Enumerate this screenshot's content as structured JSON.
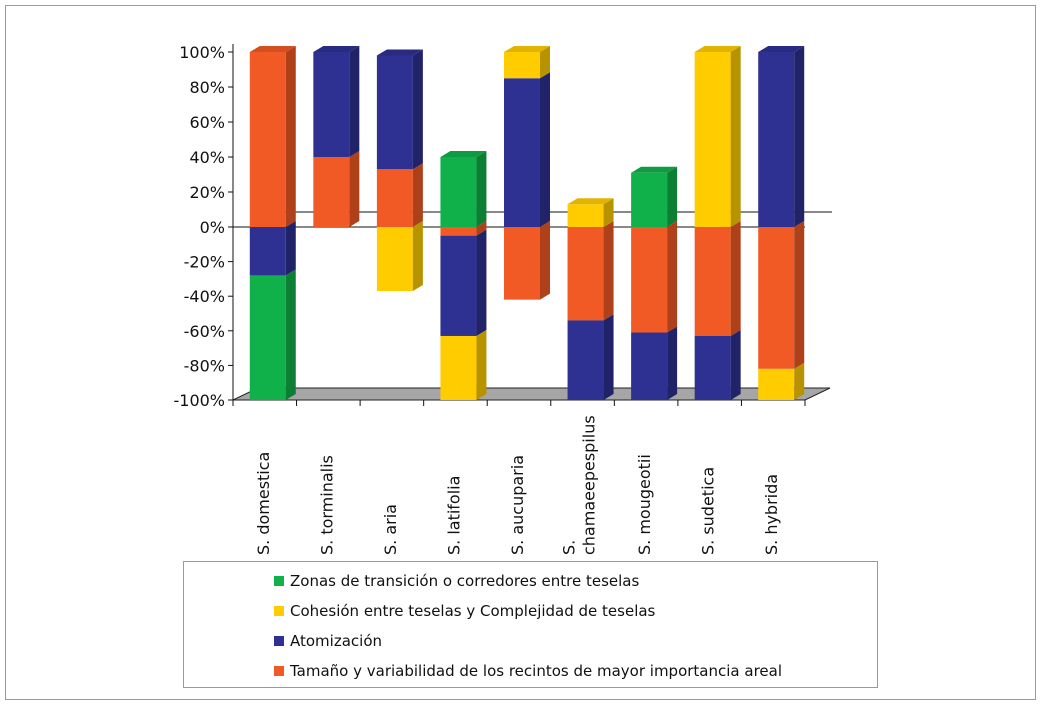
{
  "chart_data": {
    "type": "bar",
    "stacked": true,
    "three_d": true,
    "categories": [
      "S. domestica",
      "S. torminalis",
      "S. aria",
      "S. latifolia",
      "S. aucuparia",
      "S.\nchamaeepespilus",
      "S. mougeotii",
      "S. sudetica",
      "S. hybrida"
    ],
    "ylim": [
      -100,
      100
    ],
    "yticks": [
      100,
      80,
      60,
      40,
      20,
      0,
      -20,
      -40,
      -60,
      -80,
      -100
    ],
    "ytick_labels": [
      "100%",
      "80%",
      "60%",
      "40%",
      "20%",
      "0%",
      "-20%",
      "-40%",
      "-60%",
      "-80%",
      "-100%"
    ],
    "series": [
      {
        "name": "Zonas de transición o corredores entre teselas",
        "color": "#10b04a",
        "values": [
          -72,
          0,
          0,
          40,
          0,
          0,
          31,
          0,
          0
        ]
      },
      {
        "name": "Cohesión entre teselas y Complejidad de teselas",
        "color": "#ffcc00",
        "values": [
          0,
          0,
          -37,
          -37,
          15,
          13,
          0,
          100,
          -18
        ]
      },
      {
        "name": "Atomización",
        "color": "#2e3192",
        "values": [
          -28,
          60,
          65,
          -58,
          85,
          -46,
          -39,
          -37,
          100
        ]
      },
      {
        "name": "Tamaño y variabilidad de los recintos de mayor importancia areal",
        "color": "#f15a24",
        "values": [
          100,
          40,
          33,
          -5,
          -42,
          -54,
          -61,
          -63,
          -82
        ]
      }
    ],
    "legend_position": "bottom",
    "grid": false
  },
  "legend": {
    "items": [
      {
        "label": "Zonas de transición o corredores entre teselas",
        "color": "#10b04a"
      },
      {
        "label": "Cohesión entre teselas y Complejidad de teselas",
        "color": "#ffcc00"
      },
      {
        "label": "Atomización",
        "color": "#2e3192"
      },
      {
        "label": "Tamaño y variabilidad de los recintos de mayor importancia areal",
        "color": "#f15a24"
      }
    ]
  }
}
